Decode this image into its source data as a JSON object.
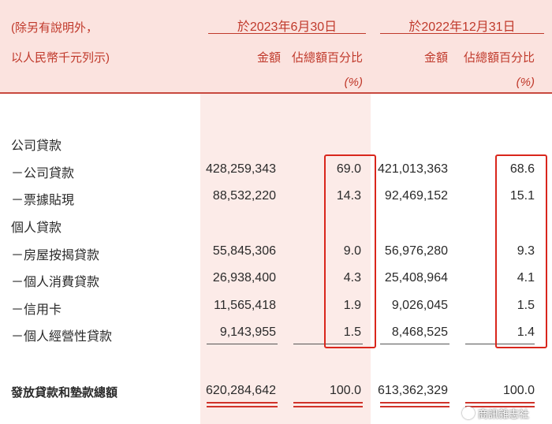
{
  "header": {
    "note_line1": "(除另有說明外，",
    "note_line2": "以人民幣千元列示)",
    "period1": "於2023年6月30日",
    "period2": "於2022年12月31日",
    "amount_label": "金額",
    "percent_label": "佔總額百分比",
    "percent_unit": "(%)"
  },
  "rows": [
    {
      "label": "公司貸款",
      "amt1": "",
      "pct1": "",
      "amt2": "",
      "pct2": ""
    },
    {
      "label": "－公司貸款",
      "amt1": "428,259,343",
      "pct1": "69.0",
      "amt2": "421,013,363",
      "pct2": "68.6"
    },
    {
      "label": "－票據貼現",
      "amt1": "88,532,220",
      "pct1": "14.3",
      "amt2": "92,469,152",
      "pct2": "15.1"
    },
    {
      "label": "個人貸款",
      "amt1": "",
      "pct1": "",
      "amt2": "",
      "pct2": ""
    },
    {
      "label": "－房屋按揭貸款",
      "amt1": "55,845,306",
      "pct1": "9.0",
      "amt2": "56,976,280",
      "pct2": "9.3"
    },
    {
      "label": "－個人消費貸款",
      "amt1": "26,938,400",
      "pct1": "4.3",
      "amt2": "25,408,964",
      "pct2": "4.1"
    },
    {
      "label": "－信用卡",
      "amt1": "11,565,418",
      "pct1": "1.9",
      "amt2": "9,026,045",
      "pct2": "1.5"
    },
    {
      "label": "－個人經營性貸款",
      "amt1": "9,143,955",
      "pct1": "1.5",
      "amt2": "8,468,525",
      "pct2": "1.4"
    }
  ],
  "total": {
    "label": "發放貸款和墊款總額",
    "amt1": "620,284,642",
    "pct1": "100.0",
    "amt2": "613,362,329",
    "pct2": "100.0"
  },
  "watermark": "商訊雜志社",
  "colors": {
    "accent": "#c0392b",
    "header_bg": "#fbe3df",
    "highlight": "#d9261c"
  }
}
